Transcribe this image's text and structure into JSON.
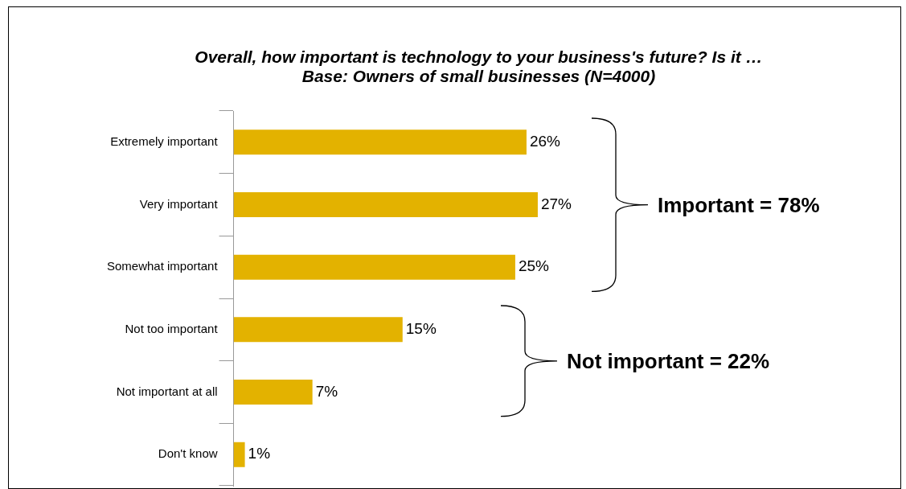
{
  "chart_data": {
    "type": "bar",
    "orientation": "horizontal",
    "title": "Overall, how important is technology to your business's future? Is it …",
    "subtitle": "Base: Owners of small businesses (N=4000)",
    "categories": [
      "Extremely important",
      "Very important",
      "Somewhat important",
      "Not too important",
      "Not important at all",
      "Don't know"
    ],
    "values": [
      26,
      27,
      25,
      15,
      7,
      1
    ],
    "value_labels": [
      "26%",
      "27%",
      "25%",
      "15%",
      "7%",
      "1%"
    ],
    "color": "#e3b200",
    "legend": false,
    "grid": false,
    "annotations": [
      "Important = 78%",
      "Not important = 22%"
    ]
  }
}
